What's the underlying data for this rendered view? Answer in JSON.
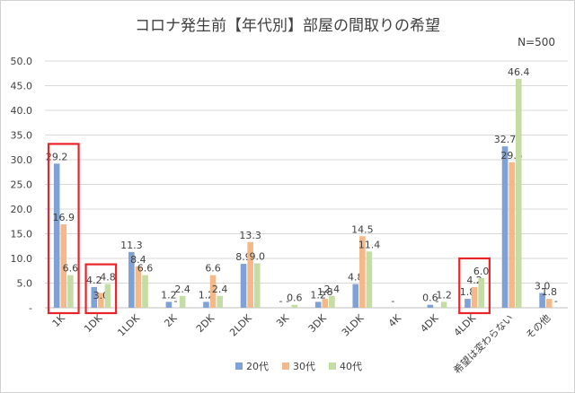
{
  "chart_data": {
    "type": "bar",
    "title": "コロナ発生前【年代別】部屋の間取りの希望",
    "sample_size": "N=500",
    "categories": [
      "1K",
      "1DK",
      "1LDK",
      "2K",
      "2DK",
      "2LDK",
      "3K",
      "3DK",
      "3LDK",
      "4K",
      "4DK",
      "4LDK",
      "希望は変わらない",
      "その他"
    ],
    "series": [
      {
        "name": "20代",
        "color": "#7ea1d6",
        "values": [
          29.2,
          4.2,
          11.3,
          1.2,
          1.2,
          8.9,
          0,
          1.2,
          4.8,
          0,
          0.6,
          1.8,
          32.7,
          3.0
        ],
        "labels": [
          "29.2",
          "4.2",
          "11.3",
          "1.2",
          "1.2",
          "8.9",
          "-",
          "1.2",
          "4.8",
          "-",
          "0.6",
          "1.8",
          "32.7",
          "3.0"
        ]
      },
      {
        "name": "30代",
        "color": "#f5b989",
        "values": [
          16.9,
          3.0,
          8.4,
          0,
          6.6,
          13.3,
          0,
          1.8,
          14.5,
          0,
          0,
          4.2,
          29.5,
          1.8
        ],
        "labels": [
          "16.9",
          "3.0",
          "8.4",
          "-",
          "6.6",
          "13.3",
          "-",
          "1.8",
          "14.5",
          "",
          "-",
          "4.2",
          "29.5",
          "1.8"
        ]
      },
      {
        "name": "40代",
        "color": "#c5dca4",
        "values": [
          6.6,
          4.8,
          6.6,
          2.4,
          2.4,
          9.0,
          0.6,
          2.4,
          11.4,
          0,
          1.2,
          6.0,
          46.4,
          0
        ],
        "labels": [
          "6.6",
          "4.8",
          "6.6",
          "2.4",
          "2.4",
          "9.0",
          "0.6",
          "2.4",
          "11.4",
          "",
          "1.2",
          "6.0",
          "46.4",
          "-"
        ]
      }
    ],
    "ylim": [
      0,
      50
    ],
    "yticks": [
      "-",
      "5.0",
      "10.0",
      "15.0",
      "20.0",
      "25.0",
      "30.0",
      "35.0",
      "40.0",
      "45.0",
      "50.0"
    ],
    "gridlines": true,
    "legend": "bottom",
    "highlighted_categories": [
      "1K",
      "1DK",
      "4LDK"
    ]
  }
}
